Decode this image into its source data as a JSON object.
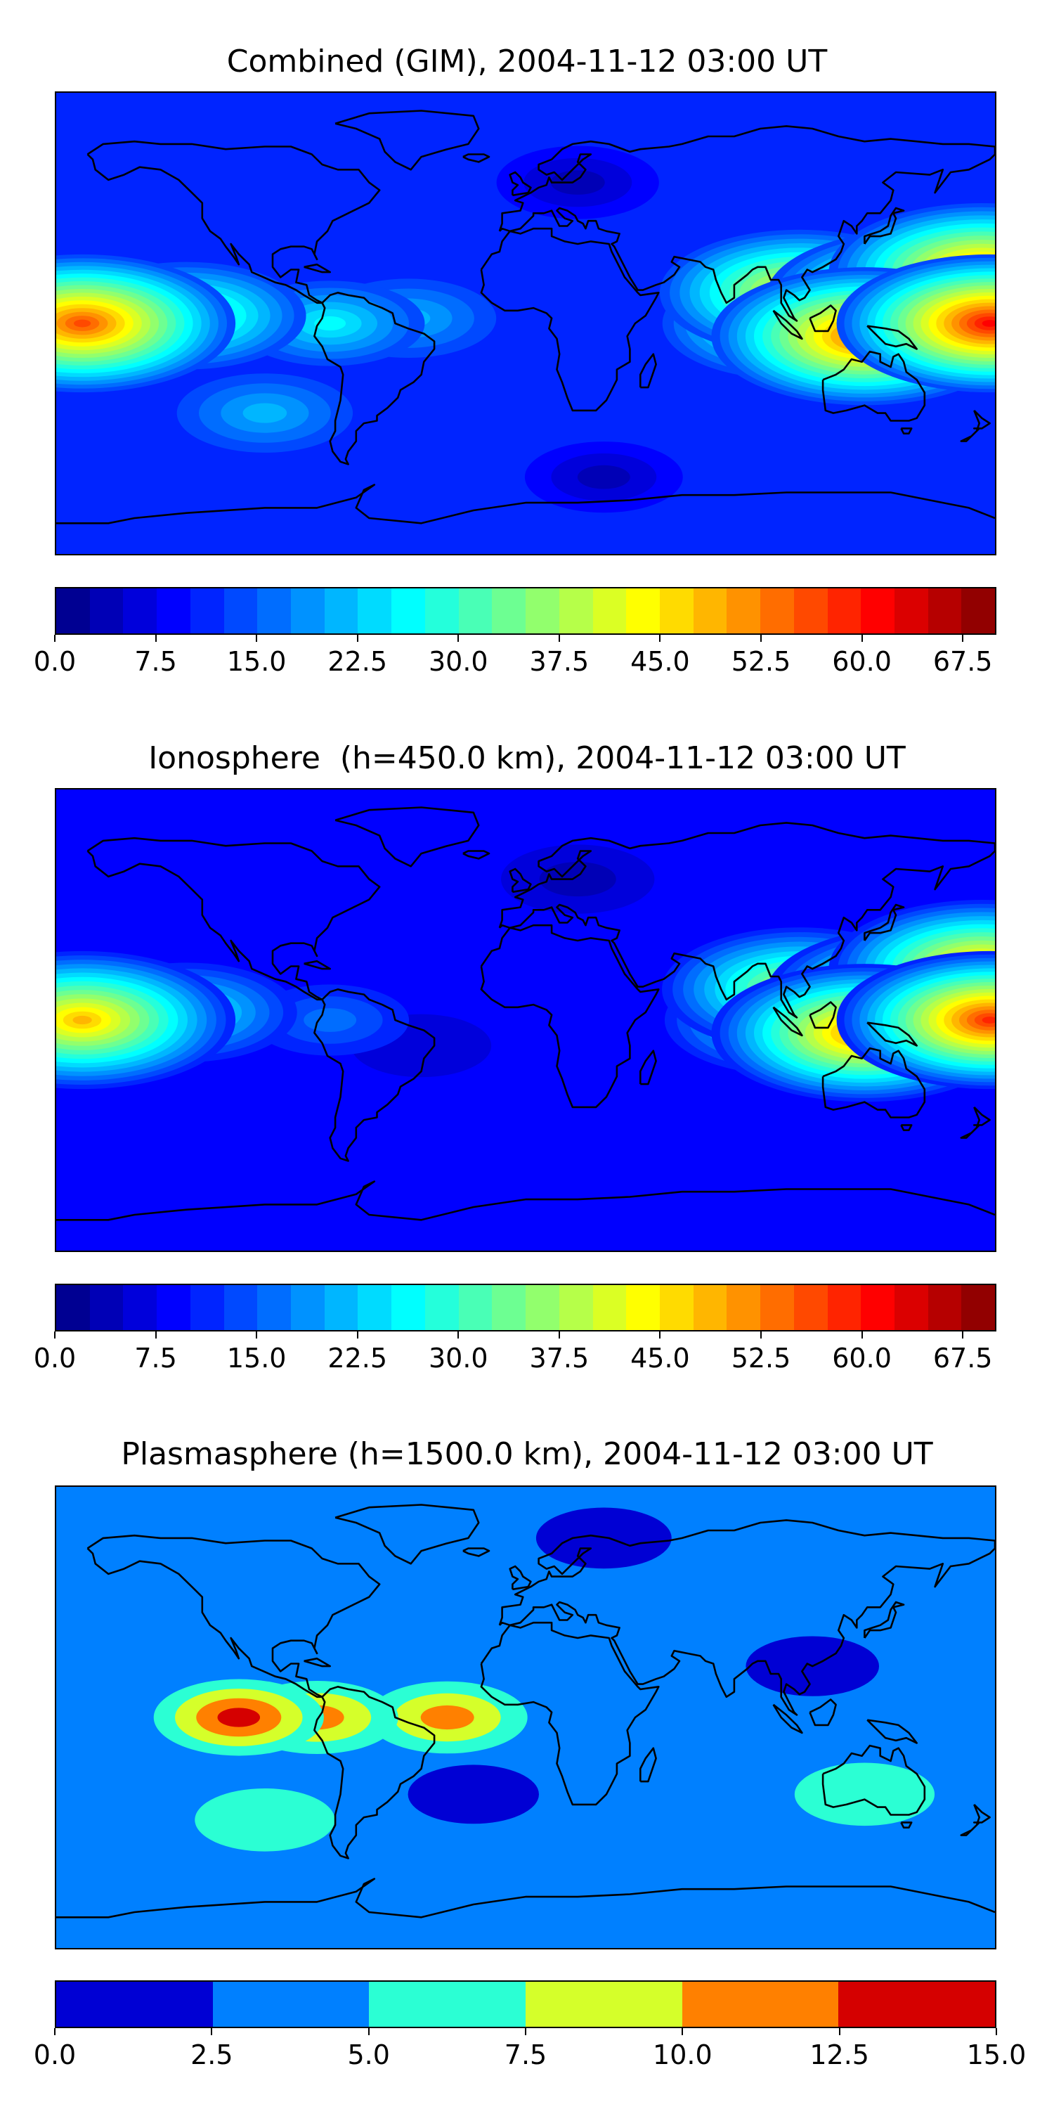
{
  "chart_data": [
    {
      "type": "heatmap",
      "title": "Combined (GIM), 2004-11-12 03:00 UT",
      "projection": "plate-carree world map with coastlines",
      "colormap": "jet",
      "levels": {
        "min": 0,
        "max": 70,
        "step": 2.5
      },
      "colorbar_ticks": [
        "0.0",
        "7.5",
        "15.0",
        "22.5",
        "30.0",
        "37.5",
        "45.0",
        "52.5",
        "60.0",
        "67.5"
      ],
      "colorbar_tick_values": [
        0,
        7.5,
        15,
        22.5,
        30,
        37.5,
        45,
        52.5,
        60,
        67.5
      ],
      "features": [
        {
          "lon": -170,
          "lat": 0,
          "value": 55
        },
        {
          "lon": -130,
          "lat": 3,
          "value": 36
        },
        {
          "lon": -75,
          "lat": 0,
          "value": 25
        },
        {
          "lon": -45,
          "lat": 2,
          "value": 22
        },
        {
          "lon": 105,
          "lat": 12,
          "value": 45
        },
        {
          "lon": 150,
          "lat": 10,
          "value": 50
        },
        {
          "lon": 175,
          "lat": 20,
          "value": 53
        },
        {
          "lon": 178,
          "lat": 0,
          "value": 60
        },
        {
          "lon": 130,
          "lat": -5,
          "value": 57
        },
        {
          "lon": 100,
          "lat": 0,
          "value": 38
        },
        {
          "lon": -100,
          "lat": -35,
          "value": 22
        },
        {
          "lon": 20,
          "lat": 55,
          "value": 3
        },
        {
          "lon": 30,
          "lat": -60,
          "value": 4
        }
      ],
      "background_value": 11
    },
    {
      "type": "heatmap",
      "title": "Ionosphere  (h=450.0 km), 2004-11-12 03:00 UT",
      "projection": "plate-carree world map with coastlines",
      "colormap": "jet",
      "levels": {
        "min": 0,
        "max": 70,
        "step": 2.5
      },
      "colorbar_ticks": [
        "0.0",
        "7.5",
        "15.0",
        "22.5",
        "30.0",
        "37.5",
        "45.0",
        "52.5",
        "60.0",
        "67.5"
      ],
      "colorbar_tick_values": [
        0,
        7.5,
        15,
        22.5,
        30,
        37.5,
        45,
        52.5,
        60,
        67.5
      ],
      "features": [
        {
          "lon": -170,
          "lat": 0,
          "value": 50
        },
        {
          "lon": -130,
          "lat": 3,
          "value": 30
        },
        {
          "lon": -75,
          "lat": 0,
          "value": 16
        },
        {
          "lon": 105,
          "lat": 12,
          "value": 42
        },
        {
          "lon": 150,
          "lat": 10,
          "value": 48
        },
        {
          "lon": 175,
          "lat": 20,
          "value": 52
        },
        {
          "lon": 178,
          "lat": 0,
          "value": 58
        },
        {
          "lon": 130,
          "lat": -5,
          "value": 55
        },
        {
          "lon": 100,
          "lat": 0,
          "value": 35
        },
        {
          "lon": 20,
          "lat": 55,
          "value": 3
        },
        {
          "lon": -40,
          "lat": -10,
          "value": 6
        }
      ],
      "background_value": 9
    },
    {
      "type": "heatmap",
      "title": "Plasmasphere (h=1500.0 km), 2004-11-12 03:00 UT",
      "projection": "plate-carree world map with coastlines",
      "colormap": "jet",
      "levels": {
        "min": 0,
        "max": 15,
        "step": 2.5
      },
      "colorbar_ticks": [
        "0.0",
        "2.5",
        "5.0",
        "7.5",
        "10.0",
        "12.5",
        "15.0"
      ],
      "colorbar_tick_values": [
        0,
        2.5,
        5,
        7.5,
        10,
        12.5,
        15
      ],
      "features": [
        {
          "lon": -80,
          "lat": 0,
          "value": 11
        },
        {
          "lon": -110,
          "lat": 0,
          "value": 12.7
        },
        {
          "lon": -30,
          "lat": 0,
          "value": 10.5
        },
        {
          "lon": -20,
          "lat": -30,
          "value": 2
        },
        {
          "lon": 110,
          "lat": 20,
          "value": 1.5
        },
        {
          "lon": 130,
          "lat": -30,
          "value": 6
        },
        {
          "lon": -100,
          "lat": -40,
          "value": 6
        },
        {
          "lon": 30,
          "lat": 70,
          "value": 1
        }
      ],
      "background_value": 3
    }
  ]
}
